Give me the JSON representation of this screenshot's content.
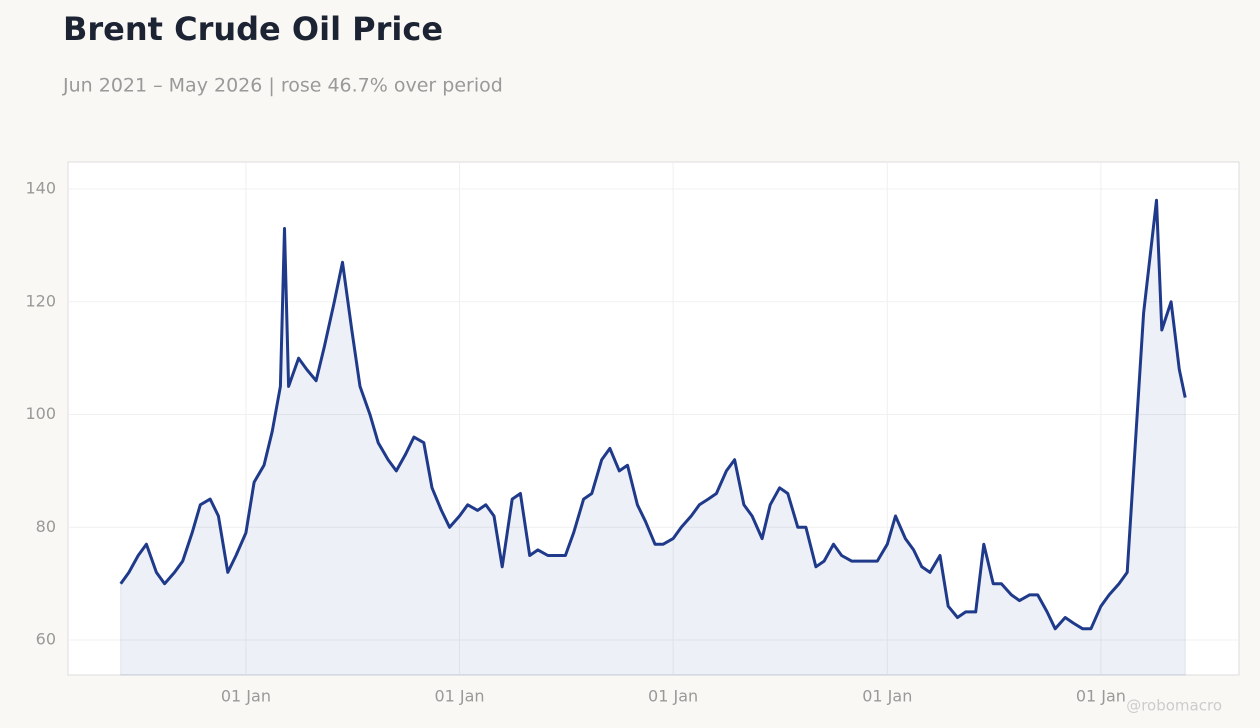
{
  "chart_data": {
    "type": "line",
    "title": "Brent Crude Oil Price",
    "subtitle": "Jun 2021 – May 2026 | rose 46.7% over period",
    "watermark": "@robomacro",
    "color": "#1f3a8a",
    "x": [
      "2021-06-01",
      "2021-06-15",
      "2021-07-01",
      "2021-07-15",
      "2021-08-01",
      "2021-08-15",
      "2021-09-01",
      "2021-09-15",
      "2021-10-01",
      "2021-10-15",
      "2021-11-01",
      "2021-11-15",
      "2021-12-01",
      "2021-12-15",
      "2022-01-01",
      "2022-01-15",
      "2022-02-01",
      "2022-02-15",
      "2022-03-01",
      "2022-03-08",
      "2022-03-15",
      "2022-04-01",
      "2022-04-15",
      "2022-05-01",
      "2022-05-15",
      "2022-06-01",
      "2022-06-15",
      "2022-07-01",
      "2022-07-15",
      "2022-08-01",
      "2022-08-15",
      "2022-09-01",
      "2022-09-15",
      "2022-10-01",
      "2022-10-15",
      "2022-11-01",
      "2022-11-15",
      "2022-12-01",
      "2022-12-15",
      "2023-01-01",
      "2023-01-15",
      "2023-02-01",
      "2023-02-15",
      "2023-03-01",
      "2023-03-15",
      "2023-04-01",
      "2023-04-15",
      "2023-05-01",
      "2023-05-15",
      "2023-06-01",
      "2023-06-15",
      "2023-07-01",
      "2023-07-15",
      "2023-08-01",
      "2023-08-15",
      "2023-09-01",
      "2023-09-15",
      "2023-10-01",
      "2023-10-15",
      "2023-11-01",
      "2023-11-15",
      "2023-12-01",
      "2023-12-15",
      "2024-01-01",
      "2024-01-15",
      "2024-02-01",
      "2024-02-15",
      "2024-03-01",
      "2024-03-15",
      "2024-04-01",
      "2024-04-15",
      "2024-05-01",
      "2024-05-15",
      "2024-06-01",
      "2024-06-15",
      "2024-07-01",
      "2024-07-15",
      "2024-08-01",
      "2024-08-15",
      "2024-09-01",
      "2024-09-15",
      "2024-10-01",
      "2024-10-15",
      "2024-11-01",
      "2024-11-15",
      "2024-12-01",
      "2024-12-15",
      "2025-01-01",
      "2025-01-15",
      "2025-02-01",
      "2025-02-15",
      "2025-03-01",
      "2025-03-15",
      "2025-04-01",
      "2025-04-15",
      "2025-05-01",
      "2025-05-15",
      "2025-06-01",
      "2025-06-15",
      "2025-07-01",
      "2025-07-15",
      "2025-08-01",
      "2025-08-15",
      "2025-09-01",
      "2025-09-15",
      "2025-10-01",
      "2025-10-15",
      "2025-11-01",
      "2025-11-15",
      "2025-12-01",
      "2025-12-15",
      "2026-01-01",
      "2026-01-15",
      "2026-02-01",
      "2026-02-15",
      "2026-03-01",
      "2026-03-15",
      "2026-04-06",
      "2026-04-15",
      "2026-05-01",
      "2026-05-15",
      "2026-05-25"
    ],
    "values": [
      70,
      72,
      75,
      77,
      72,
      70,
      72,
      74,
      79,
      84,
      85,
      82,
      72,
      75,
      79,
      88,
      91,
      97,
      105,
      133,
      105,
      110,
      108,
      106,
      112,
      120,
      127,
      115,
      105,
      100,
      95,
      92,
      90,
      93,
      96,
      95,
      87,
      83,
      80,
      82,
      84,
      83,
      84,
      82,
      73,
      85,
      86,
      75,
      76,
      75,
      75,
      75,
      79,
      85,
      86,
      92,
      94,
      90,
      91,
      84,
      81,
      77,
      77,
      78,
      80,
      82,
      84,
      85,
      86,
      90,
      92,
      84,
      82,
      78,
      84,
      87,
      86,
      80,
      80,
      73,
      74,
      77,
      75,
      74,
      74,
      74,
      74,
      77,
      82,
      78,
      76,
      73,
      72,
      75,
      66,
      64,
      65,
      65,
      77,
      70,
      70,
      68,
      67,
      68,
      68,
      65,
      62,
      64,
      63,
      62,
      62,
      66,
      68,
      70,
      72,
      95,
      118,
      138,
      115,
      120,
      108,
      103
    ],
    "xlim": [
      "2021-03-03",
      "2026-08-25"
    ],
    "xticks": [
      {
        "value": "2022-01-01",
        "label": "01 Jan"
      },
      {
        "value": "2023-01-01",
        "label": "01 Jan"
      },
      {
        "value": "2024-01-01",
        "label": "01 Jan"
      },
      {
        "value": "2025-01-01",
        "label": "01 Jan"
      },
      {
        "value": "2026-01-01",
        "label": "01 Jan"
      }
    ],
    "ylim": [
      53.8,
      144.8
    ],
    "yticks": [
      60,
      80,
      100,
      120,
      140
    ],
    "grid": true
  }
}
